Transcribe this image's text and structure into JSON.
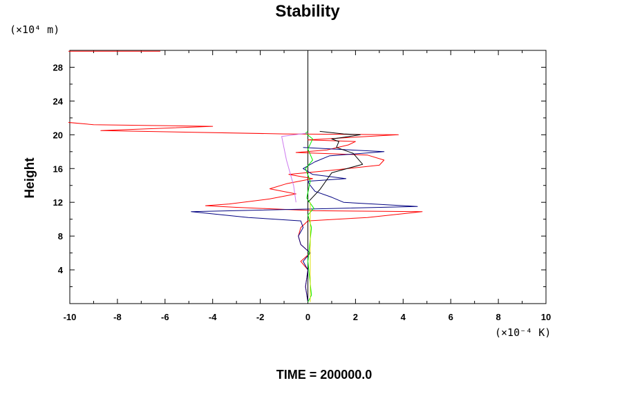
{
  "chart_data": {
    "type": "line",
    "title": "Stability",
    "ylabel": "Height",
    "xlabel": "",
    "y_unit": "(×10⁴ m)",
    "x_unit": "(×10⁻⁴ K)",
    "footer": "TIME = 200000.0",
    "xlim": [
      -10,
      10
    ],
    "ylim": [
      0,
      30
    ],
    "x_ticks": [
      -10,
      -8,
      -6,
      -4,
      -2,
      0,
      2,
      4,
      6,
      8,
      10
    ],
    "x_tick_labels": [
      "-10",
      "-8",
      "-6",
      "-4",
      "-2",
      "0",
      "2",
      "4",
      "6",
      "8",
      "10"
    ],
    "y_ticks": [
      4,
      8,
      12,
      16,
      20,
      24,
      28
    ],
    "y_tick_labels": [
      "4",
      "8",
      "12",
      "16",
      "20",
      "24",
      "28"
    ],
    "grid": false,
    "colors": {
      "red": "#ff0000",
      "navy": "#000080",
      "black": "#000000",
      "green": "#00ee00",
      "violet": "#cc77ee",
      "yellow": "#dddd00"
    },
    "series": [
      {
        "color": "#ff0000",
        "points": [
          [
            0.0,
            0.2
          ],
          [
            -0.1,
            2
          ],
          [
            0.0,
            4
          ],
          [
            -0.3,
            5
          ],
          [
            0.1,
            6
          ],
          [
            -0.3,
            7
          ],
          [
            -0.4,
            8
          ],
          [
            -0.3,
            9
          ],
          [
            0.0,
            9.8
          ],
          [
            2.5,
            10.2
          ],
          [
            4.8,
            10.9
          ],
          [
            0.3,
            11.0
          ],
          [
            -3.0,
            11.4
          ],
          [
            -4.3,
            11.6
          ],
          [
            -3.3,
            11.8
          ],
          [
            -1.6,
            12.4
          ],
          [
            -0.5,
            13.0
          ],
          [
            -1.6,
            13.6
          ],
          [
            -0.9,
            14.2
          ],
          [
            0.2,
            14.8
          ],
          [
            -0.8,
            15.3
          ],
          [
            1.0,
            15.8
          ],
          [
            3.0,
            16.4
          ],
          [
            3.2,
            17.0
          ],
          [
            2.5,
            17.6
          ],
          [
            -0.5,
            17.9
          ],
          [
            0.8,
            18.2
          ],
          [
            1.7,
            18.8
          ],
          [
            2.0,
            19.2
          ],
          [
            0.0,
            19.4
          ],
          [
            3.8,
            20.0
          ],
          [
            -1.0,
            20.1
          ],
          [
            -8.7,
            20.5
          ],
          [
            -4.0,
            21.0
          ],
          [
            -9.0,
            21.2
          ],
          [
            -10.2,
            21.5
          ],
          [
            -10.5,
            22.0
          ],
          [
            -10.5,
            29.9
          ],
          [
            -6.2,
            29.9
          ]
        ]
      },
      {
        "color": "#000080",
        "points": [
          [
            0.0,
            0.2
          ],
          [
            -0.1,
            2
          ],
          [
            0.0,
            4
          ],
          [
            -0.2,
            5
          ],
          [
            0.1,
            6
          ],
          [
            -0.3,
            7
          ],
          [
            -0.4,
            8
          ],
          [
            -0.2,
            9
          ],
          [
            -0.3,
            9.8
          ],
          [
            -2.5,
            10.2
          ],
          [
            -4.9,
            10.9
          ],
          [
            0.0,
            11.2
          ],
          [
            4.6,
            11.5
          ],
          [
            1.5,
            12.0
          ],
          [
            1.0,
            12.6
          ],
          [
            0.3,
            13.3
          ],
          [
            0.1,
            14.0
          ],
          [
            0.0,
            14.5
          ],
          [
            1.6,
            14.8
          ],
          [
            0.2,
            15.3
          ],
          [
            -0.2,
            16.0
          ],
          [
            0.3,
            16.8
          ],
          [
            0.9,
            17.5
          ],
          [
            3.2,
            18.0
          ],
          [
            -0.2,
            18.5
          ]
        ]
      },
      {
        "color": "#000000",
        "points": [
          [
            0.0,
            12.0
          ],
          [
            0.5,
            13.5
          ],
          [
            1.0,
            15.5
          ],
          [
            2.3,
            16.5
          ],
          [
            1.9,
            17.8
          ],
          [
            1.2,
            18.5
          ],
          [
            1.3,
            19.2
          ],
          [
            1.0,
            19.5
          ],
          [
            1.5,
            19.7
          ],
          [
            2.2,
            20.0
          ],
          [
            1.5,
            20.1
          ],
          [
            0.5,
            20.4
          ]
        ]
      },
      {
        "color": "#00ee00",
        "points": [
          [
            0.0,
            0.2
          ],
          [
            0.15,
            1
          ],
          [
            0.0,
            5
          ],
          [
            0.15,
            9
          ],
          [
            0.0,
            10.5
          ],
          [
            0.25,
            11.3
          ],
          [
            -0.05,
            12.5
          ],
          [
            0.1,
            14.5
          ],
          [
            -0.1,
            16
          ],
          [
            0.2,
            17
          ],
          [
            0.0,
            18.3
          ],
          [
            0.2,
            19.5
          ],
          [
            -0.1,
            20.2
          ],
          [
            0.0,
            20.4
          ]
        ]
      },
      {
        "color": "#cc77ee",
        "points": [
          [
            -0.5,
            12.0
          ],
          [
            -0.6,
            14.0
          ],
          [
            -0.9,
            17.0
          ],
          [
            -1.1,
            19.8
          ],
          [
            -0.3,
            20.1
          ],
          [
            0.0,
            20.2
          ]
        ]
      },
      {
        "color": "#dddd00",
        "points": [
          [
            0.1,
            0.2
          ],
          [
            0.1,
            12.0
          ]
        ]
      }
    ]
  }
}
